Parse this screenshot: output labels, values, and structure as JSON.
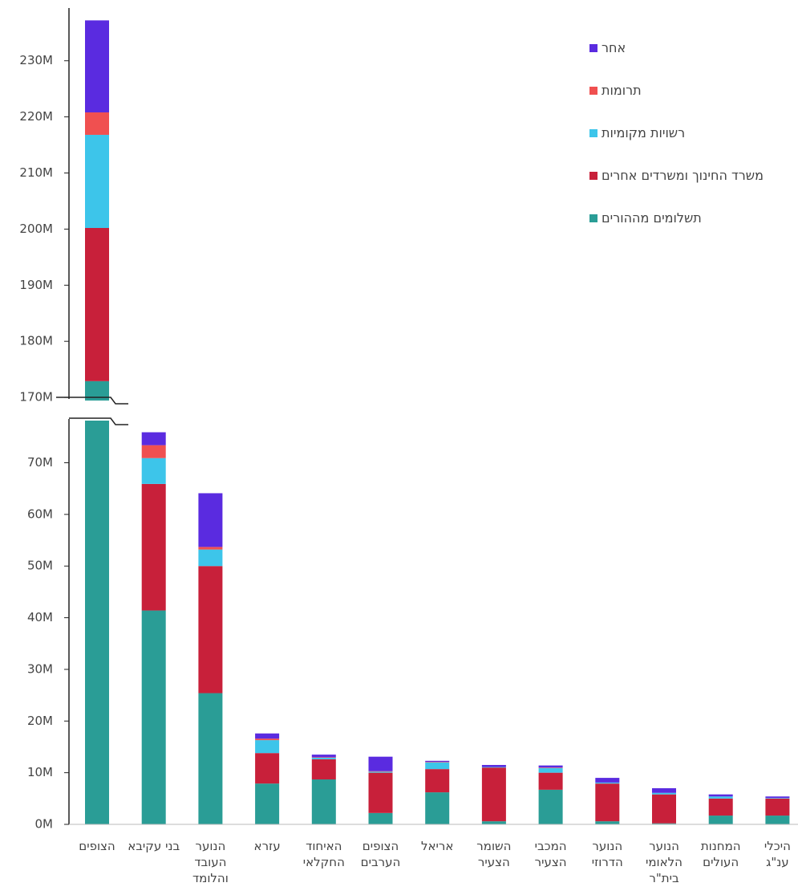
{
  "chart_data": {
    "type": "stacked_bar",
    "categories": [
      "הצופים",
      "בני עקיבא",
      "הנוער העובד והלומד",
      "עזרא",
      "האיחוד החקלאי",
      "הצופים הערבים",
      "אריאל",
      "השומר הצעיר",
      "המכבי הצעיר",
      "הנוער הדרוזי",
      "הנוער הלאומי בית\"ר",
      "המחנות העולים",
      "היכלי ענ\"ג"
    ],
    "series": [
      {
        "name": "תשלומים מההורים",
        "color": "#2a9d96",
        "values": [
          172.9,
          41.4,
          25.4,
          7.9,
          8.7,
          2.2,
          6.2,
          0.6,
          6.7,
          0.6,
          0.2,
          1.7,
          1.7
        ]
      },
      {
        "name": "משרד החינוך ומשרדים אחרים",
        "color": "#c8203a",
        "values": [
          27.3,
          24.5,
          24.6,
          5.9,
          3.9,
          7.8,
          4.5,
          10.4,
          3.3,
          7.3,
          5.6,
          3.3,
          3.3
        ]
      },
      {
        "name": "רשויות מקומיות",
        "color": "#3dc5ea",
        "values": [
          16.6,
          5.0,
          3.2,
          2.5,
          0.3,
          0.2,
          1.3,
          0.1,
          0.9,
          0.2,
          0.3,
          0.4,
          0.1
        ]
      },
      {
        "name": "תרומות",
        "color": "#f05050",
        "values": [
          4.0,
          2.5,
          0.5,
          0.3,
          0.1,
          0.1,
          0.1,
          0,
          0.1,
          0,
          0,
          0,
          0
        ]
      },
      {
        "name": "אחר",
        "color": "#5a2be0",
        "values": [
          16.4,
          2.5,
          10.4,
          1.0,
          0.5,
          2.8,
          0.2,
          0.4,
          0.4,
          0.9,
          0.9,
          0.4,
          0.3
        ]
      }
    ],
    "ylim": [
      0,
      78
    ],
    "yticks": [
      {
        "value": 0,
        "label": "0M"
      },
      {
        "value": 10,
        "label": "10M"
      },
      {
        "value": 20,
        "label": "20M"
      },
      {
        "value": 30,
        "label": "30M"
      },
      {
        "value": 40,
        "label": "40M"
      },
      {
        "value": 50,
        "label": "50M"
      },
      {
        "value": 60,
        "label": "60M"
      },
      {
        "value": 70,
        "label": "70M"
      }
    ],
    "y2lim": [
      169.3,
      239.4
    ],
    "y2ticks": [
      {
        "value": 170,
        "label": "170M"
      },
      {
        "value": 180,
        "label": "180M"
      },
      {
        "value": 190,
        "label": "190M"
      },
      {
        "value": 200,
        "label": "200M"
      },
      {
        "value": 210,
        "label": "210M"
      },
      {
        "value": 220,
        "label": "220M"
      },
      {
        "value": 230,
        "label": "230M"
      }
    ],
    "legend": "top-right"
  }
}
